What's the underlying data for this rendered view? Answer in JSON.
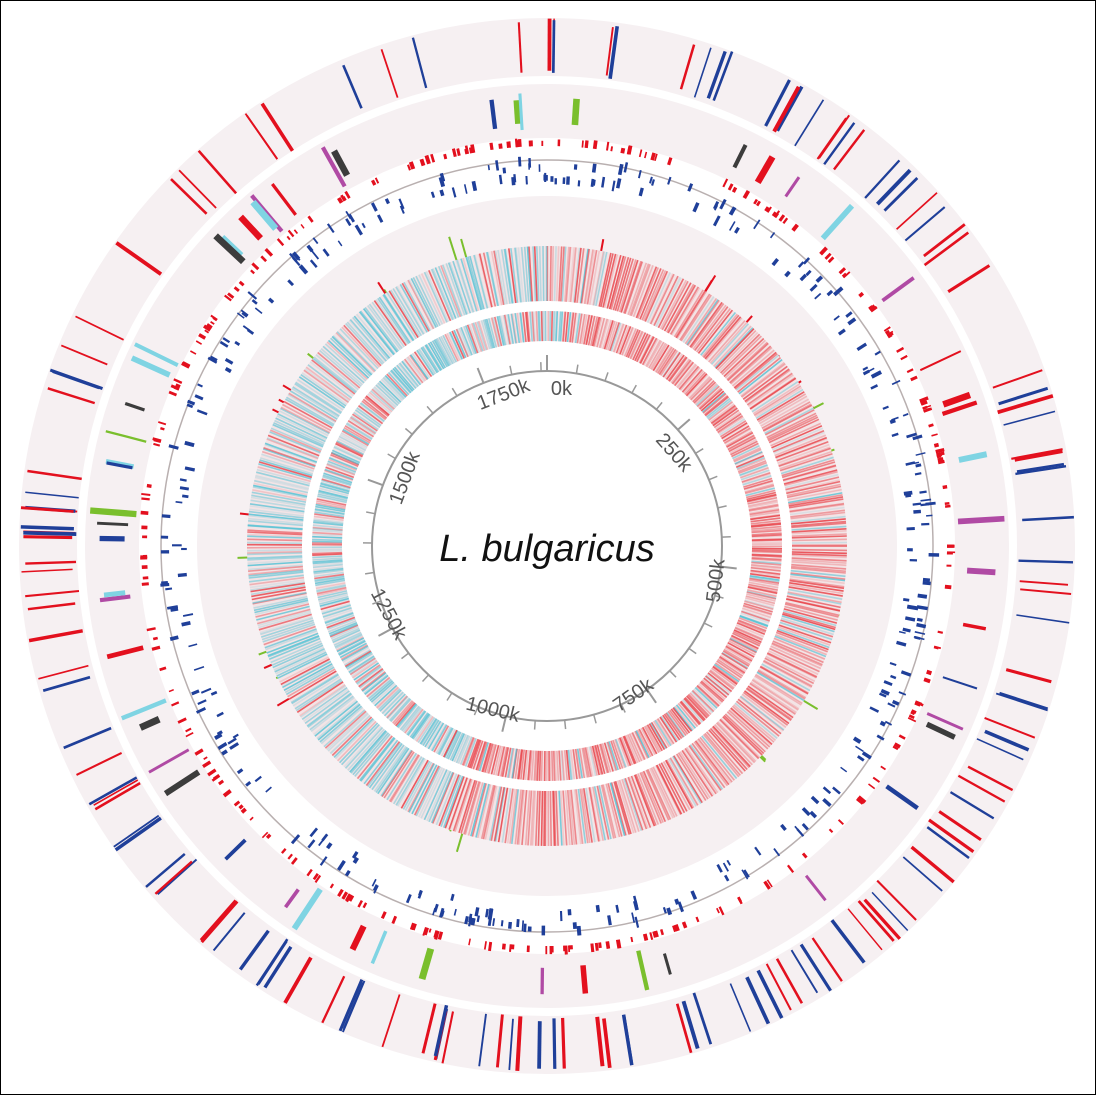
{
  "title": "L. bulgaricus",
  "genome_length": 1860000,
  "scale_ticks": [
    {
      "pos": 0,
      "label": "0k"
    },
    {
      "pos": 250000,
      "label": "250k"
    },
    {
      "pos": 500000,
      "label": "500k"
    },
    {
      "pos": 750000,
      "label": "750k"
    },
    {
      "pos": 1000000,
      "label": "1000k"
    },
    {
      "pos": 1250000,
      "label": "1250k"
    },
    {
      "pos": 1500000,
      "label": "1500k"
    },
    {
      "pos": 1750000,
      "label": "1750k"
    }
  ],
  "minor_tick_step": 50000,
  "colors": {
    "track_background": "#f6f0f2",
    "red": "#e3101e",
    "blue": "#1f3f99",
    "dark": "#3c3c3c",
    "cyan": "#7fd4e3",
    "green": "#7abf2d",
    "magenta": "#b04aa4",
    "axis": "#999999",
    "heat_positive": "#e8383f",
    "heat_negative": "#4ec1d4"
  },
  "tracks": [
    {
      "name": "outer-cds-ring",
      "colors": [
        "red",
        "blue"
      ],
      "density": 140
    },
    {
      "name": "feature-ring",
      "colors": [
        "red",
        "dark",
        "cyan",
        "magenta",
        "green",
        "blue"
      ],
      "density": 55
    },
    {
      "name": "red-dashes-ring",
      "colors": [
        "red"
      ],
      "density": 260
    },
    {
      "name": "blue-dashes-ring",
      "colors": [
        "blue"
      ],
      "density": 300
    },
    {
      "name": "green-marker-ring",
      "colors": [
        "green",
        "red"
      ],
      "density": 32
    },
    {
      "name": "heatmap-outer",
      "type": "heatmap"
    },
    {
      "name": "heatmap-inner",
      "type": "heatmap"
    }
  ]
}
